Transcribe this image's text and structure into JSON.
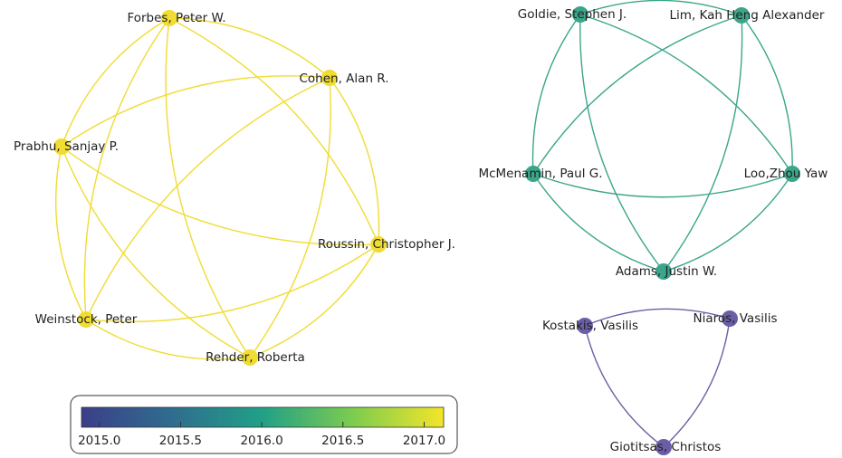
{
  "clusters": [
    {
      "color": "#f0dc32",
      "nodes": [
        {
          "label": "Forbes, Peter W."
        },
        {
          "label": "Cohen, Alan R."
        },
        {
          "label": "Prabhu, Sanjay P."
        },
        {
          "label": "Roussin, Christopher J."
        },
        {
          "label": "Weinstock, Peter"
        },
        {
          "label": "Rehder, Roberta"
        }
      ]
    },
    {
      "color": "#3aa58a",
      "nodes": [
        {
          "label": "Goldie, Stephen J."
        },
        {
          "label": "Lim, Kah Heng Alexander"
        },
        {
          "label": "McMenamin, Paul G."
        },
        {
          "label": "Loo,Zhou Yaw"
        },
        {
          "label": "Adams, Justin W."
        }
      ]
    },
    {
      "color": "#6a5fa6",
      "nodes": [
        {
          "label": "Kostakis, Vasilis"
        },
        {
          "label": "Niaros, Vasilis"
        },
        {
          "label": "Giotitsas, Christos"
        }
      ]
    }
  ],
  "colorbar": {
    "range": [
      2014.89,
      2017.12
    ],
    "ticks": [
      {
        "value": 2015,
        "label": "2015.0"
      },
      {
        "value": 2015.5,
        "label": "2015.5"
      },
      {
        "value": 2016,
        "label": "2016.0"
      },
      {
        "value": 2016.5,
        "label": "2016.5"
      },
      {
        "value": 2017,
        "label": "2017.0"
      }
    ]
  }
}
